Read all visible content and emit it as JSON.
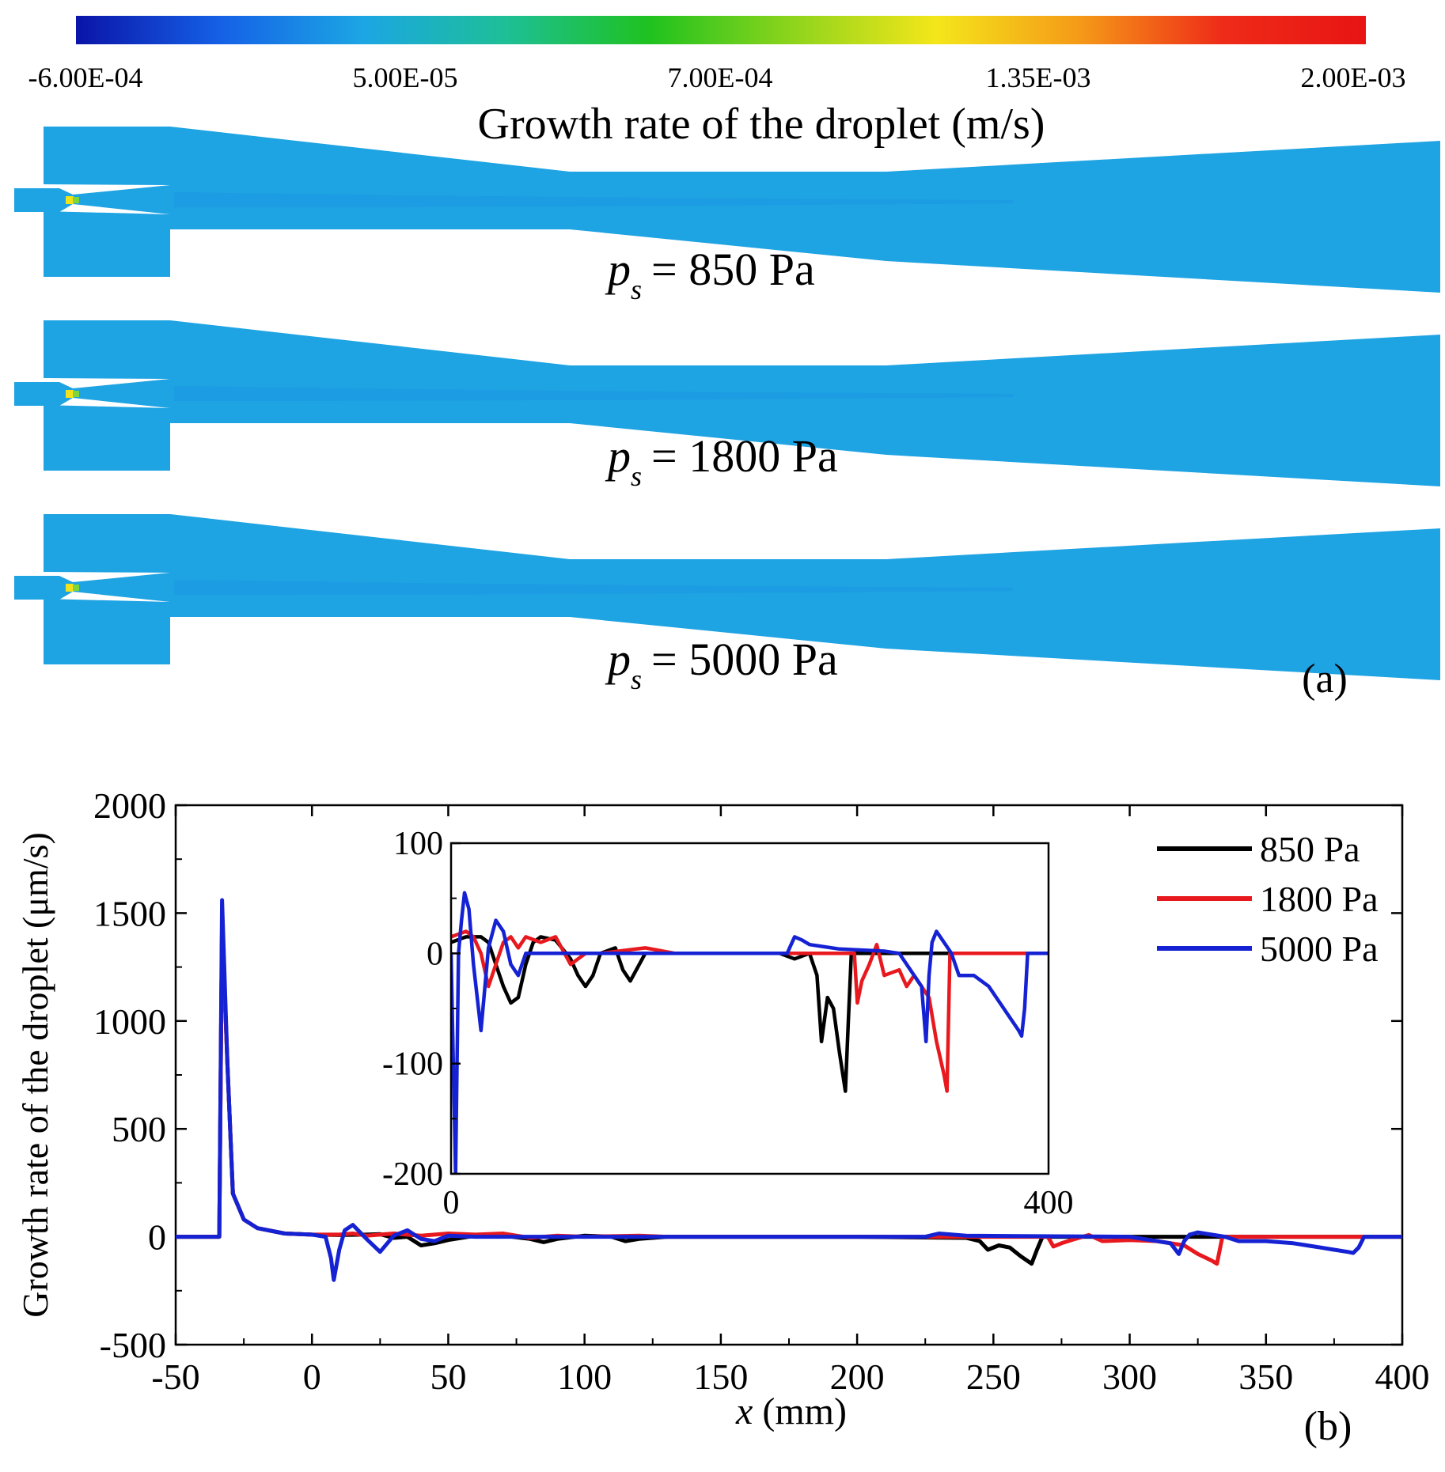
{
  "panel_a": {
    "colorbar": {
      "ticks": [
        "-6.00E-04",
        "5.00E-05",
        "7.00E-04",
        "1.35E-03",
        "2.00E-03"
      ],
      "title": "Growth rate of the droplet (m/s)",
      "colors": [
        "#0a14a8",
        "#1560e6",
        "#1ca6e4",
        "#1dbf96",
        "#1fc21f",
        "#8ed41c",
        "#f4e61a",
        "#f59a18",
        "#ee2b18",
        "#e81414"
      ]
    },
    "nozzle_color": "#1ea3e3",
    "cases": [
      {
        "symbol": "p",
        "sub": "s",
        "eq": "= 850 Pa"
      },
      {
        "symbol": "p",
        "sub": "s",
        "eq": "= 1800 Pa"
      },
      {
        "symbol": "p",
        "sub": "s",
        "eq": "= 5000 Pa"
      }
    ],
    "label": "(a)"
  },
  "chart_data": [
    {
      "type": "line",
      "panel": "(b)",
      "title": "",
      "xlabel_var": "x",
      "xlabel_unit": " (mm)",
      "ylabel": "Growth rate of the droplet  (μm/s)",
      "xlim": [
        -50,
        400
      ],
      "ylim": [
        -500,
        2000
      ],
      "xticks": [
        -50,
        0,
        50,
        100,
        150,
        200,
        250,
        300,
        350,
        400
      ],
      "yticks": [
        -500,
        0,
        500,
        1000,
        1500,
        2000
      ],
      "legend_position": "top-right",
      "series": [
        {
          "name": "850 Pa",
          "color": "#000000",
          "x": [
            -50,
            -34,
            -33,
            -31,
            -29,
            -25,
            -20,
            -10,
            0,
            10,
            20,
            25,
            30,
            35,
            40,
            45,
            50,
            60,
            70,
            80,
            85,
            90,
            100,
            110,
            115,
            120,
            130,
            150,
            200,
            240,
            245,
            248,
            252,
            256,
            260,
            264,
            266,
            268,
            275,
            300,
            330,
            350,
            400
          ],
          "y": [
            0,
            0,
            1450,
            800,
            200,
            80,
            40,
            15,
            10,
            8,
            10,
            12,
            -5,
            0,
            -40,
            -30,
            -15,
            5,
            5,
            -10,
            -25,
            -10,
            5,
            0,
            -20,
            -10,
            0,
            0,
            0,
            -5,
            -20,
            -60,
            -40,
            -50,
            -90,
            -125,
            -60,
            0,
            0,
            0,
            0,
            0,
            0
          ]
        },
        {
          "name": "1800 Pa",
          "color": "#e8191e",
          "x": [
            -50,
            -34,
            -33,
            -31,
            -29,
            -25,
            -20,
            -10,
            0,
            10,
            15,
            20,
            25,
            30,
            40,
            50,
            60,
            70,
            80,
            90,
            100,
            120,
            130,
            150,
            200,
            250,
            270,
            272,
            275,
            280,
            285,
            290,
            300,
            310,
            320,
            325,
            330,
            332,
            334,
            340,
            400
          ],
          "y": [
            0,
            0,
            1450,
            800,
            200,
            80,
            40,
            15,
            10,
            10,
            15,
            5,
            10,
            15,
            5,
            15,
            10,
            15,
            -5,
            5,
            0,
            5,
            0,
            0,
            0,
            0,
            0,
            -45,
            -30,
            -10,
            8,
            -20,
            -15,
            -20,
            -40,
            -80,
            -110,
            -125,
            0,
            0,
            0
          ]
        },
        {
          "name": "5000 Pa",
          "color": "#1522d3",
          "x": [
            -50,
            -34,
            -33,
            -31,
            -29,
            -25,
            -20,
            -10,
            0,
            5,
            7,
            8,
            10,
            12,
            15,
            20,
            25,
            30,
            35,
            40,
            45,
            50,
            60,
            80,
            100,
            130,
            150,
            200,
            225,
            230,
            235,
            240,
            260,
            300,
            315,
            318,
            320,
            322,
            325,
            330,
            335,
            340,
            350,
            360,
            370,
            375,
            380,
            382,
            384,
            386,
            400
          ],
          "y": [
            0,
            0,
            1560,
            800,
            200,
            80,
            40,
            15,
            10,
            0,
            -100,
            -200,
            -60,
            30,
            55,
            -10,
            -70,
            5,
            30,
            -10,
            -20,
            5,
            0,
            0,
            0,
            0,
            0,
            0,
            0,
            15,
            10,
            5,
            3,
            0,
            -30,
            -80,
            -20,
            10,
            20,
            10,
            0,
            -20,
            -20,
            -30,
            -50,
            -60,
            -70,
            -75,
            -50,
            0,
            0
          ]
        }
      ]
    },
    {
      "type": "line",
      "panel": "inset",
      "title": "",
      "xlim": [
        0,
        400
      ],
      "ylim": [
        -200,
        100
      ],
      "xticks": [
        0,
        400
      ],
      "yticks": [
        -200,
        -100,
        0,
        100
      ],
      "series": [
        {
          "name": "850 Pa",
          "color": "#000000",
          "x": [
            0,
            10,
            20,
            25,
            30,
            35,
            40,
            45,
            50,
            55,
            60,
            70,
            80,
            85,
            90,
            95,
            100,
            110,
            115,
            120,
            130,
            150,
            200,
            220,
            230,
            240,
            245,
            248,
            252,
            256,
            260,
            264,
            266,
            268,
            275,
            300,
            350,
            400
          ],
          "y": [
            10,
            15,
            15,
            10,
            -10,
            -30,
            -45,
            -40,
            -10,
            10,
            15,
            12,
            -5,
            -20,
            -30,
            -20,
            0,
            5,
            -15,
            -25,
            0,
            0,
            0,
            0,
            -5,
            0,
            -20,
            -80,
            -40,
            -50,
            -90,
            -125,
            -60,
            0,
            0,
            0,
            0,
            0
          ]
        },
        {
          "name": "1800 Pa",
          "color": "#e8191e",
          "x": [
            0,
            10,
            15,
            20,
            25,
            30,
            35,
            40,
            45,
            50,
            60,
            70,
            80,
            90,
            100,
            130,
            150,
            200,
            260,
            270,
            272,
            275,
            280,
            285,
            290,
            300,
            305,
            310,
            320,
            325,
            330,
            332,
            334,
            340,
            400
          ],
          "y": [
            15,
            20,
            15,
            0,
            -30,
            -10,
            10,
            15,
            5,
            15,
            10,
            15,
            -10,
            0,
            0,
            5,
            0,
            0,
            0,
            0,
            -45,
            -25,
            -10,
            8,
            -20,
            -15,
            -30,
            -20,
            -40,
            -80,
            -110,
            -125,
            0,
            0,
            0
          ]
        },
        {
          "name": "5000 Pa",
          "color": "#1522d3",
          "x": [
            0,
            3,
            5,
            7,
            9,
            12,
            15,
            20,
            25,
            30,
            35,
            40,
            45,
            50,
            60,
            80,
            100,
            130,
            150,
            200,
            225,
            230,
            235,
            240,
            250,
            260,
            290,
            300,
            315,
            318,
            320,
            322,
            325,
            330,
            335,
            340,
            350,
            360,
            370,
            375,
            380,
            382,
            384,
            386,
            400
          ],
          "y": [
            0,
            -200,
            0,
            30,
            55,
            40,
            -10,
            -70,
            5,
            30,
            20,
            -10,
            -20,
            0,
            0,
            0,
            0,
            0,
            0,
            0,
            0,
            15,
            12,
            8,
            6,
            4,
            2,
            0,
            -30,
            -80,
            -20,
            10,
            20,
            10,
            0,
            -20,
            -20,
            -30,
            -50,
            -60,
            -70,
            -75,
            -50,
            0,
            0
          ]
        }
      ]
    }
  ]
}
